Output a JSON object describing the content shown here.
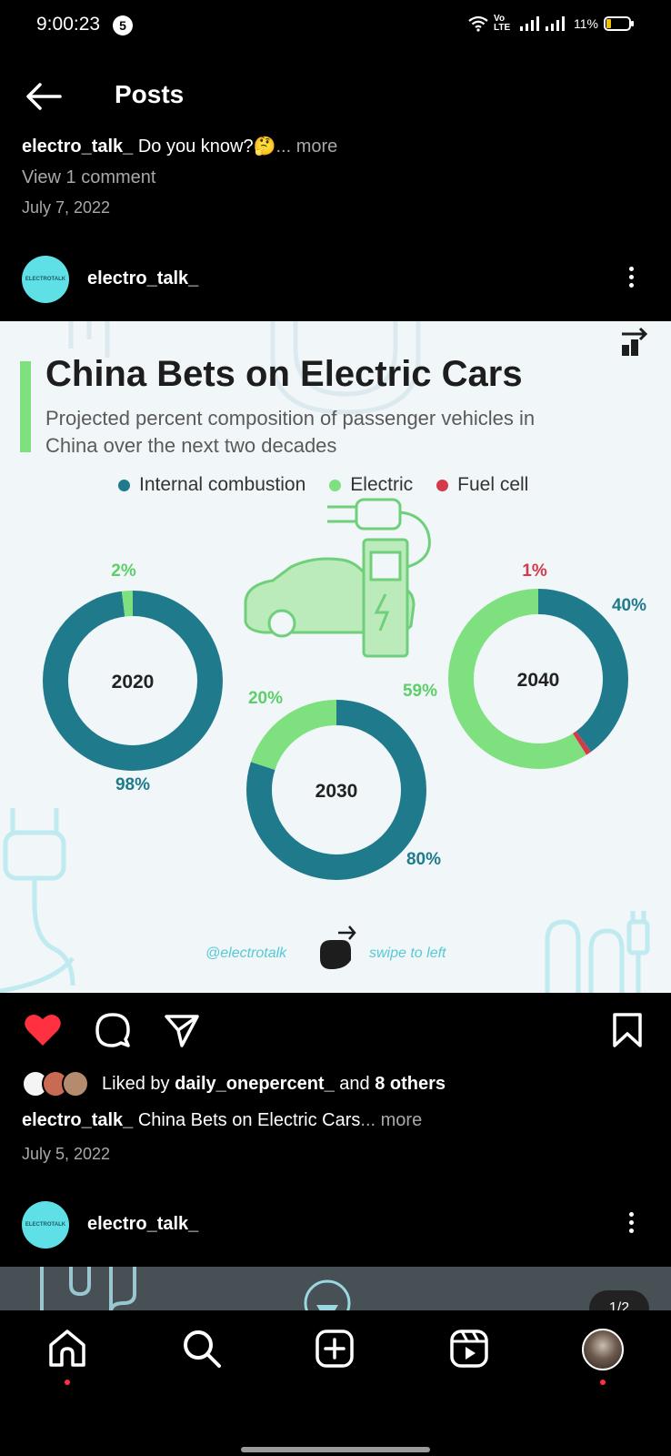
{
  "status": {
    "time": "9:00:23",
    "notif_count": "5",
    "carrier_label": "Vo LTE",
    "battery": "11%"
  },
  "header": {
    "title": "Posts",
    "back_icon": "arrow-left-icon"
  },
  "previous_post": {
    "username": "electro_talk_",
    "caption": " Do you know?🤔",
    "more": "... more",
    "comments": "View 1 comment",
    "date": "July 7, 2022"
  },
  "post": {
    "username": "electro_talk_",
    "avatar_text": "ELECTROTALK",
    "liked_prefix": "Liked by ",
    "liked_user": "daily_onepercent_",
    "liked_middle": " and ",
    "liked_others": "8 others",
    "caption_user": "electro_talk_",
    "caption_text": " China Bets on Electric Cars",
    "caption_more": "... more",
    "date": "July 5, 2022"
  },
  "next_post": {
    "username": "electro_talk_",
    "avatar_text": "ELECTROTALK",
    "page_indicator": "1/2"
  },
  "infographic": {
    "title": "China Bets on Electric Cars",
    "subtitle": "Projected percent composition of passenger vehicles in China over the next two decades",
    "handle": "@electrotalk",
    "swipe": "swipe to left",
    "colors": {
      "internal_combustion": "#1f7a8c",
      "electric": "#7ee07f",
      "fuel_cell": "#d33a4a"
    }
  },
  "chart_data": {
    "type": "pie",
    "title": "China Bets on Electric Cars",
    "subtitle": "Projected percent composition of passenger vehicles in China over the next two decades",
    "legend": [
      "Internal combustion",
      "Electric",
      "Fuel cell"
    ],
    "legend_position": "top",
    "charts": [
      {
        "label": "2020",
        "values": {
          "Internal combustion": 98,
          "Electric": 2,
          "Fuel cell": 0
        },
        "labels": [
          "98%",
          "2%"
        ]
      },
      {
        "label": "2030",
        "values": {
          "Internal combustion": 80,
          "Electric": 20,
          "Fuel cell": 0
        },
        "labels": [
          "80%",
          "20%"
        ]
      },
      {
        "label": "2040",
        "values": {
          "Internal combustion": 40,
          "Electric": 59,
          "Fuel cell": 1
        },
        "labels": [
          "40%",
          "59%",
          "1%"
        ]
      }
    ]
  }
}
